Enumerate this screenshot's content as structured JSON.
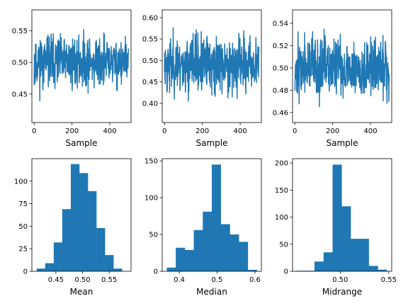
{
  "colors": {
    "series": "#1f77b4",
    "axes": "#000000",
    "background": "#ffffff"
  },
  "chart_data": [
    {
      "type": "line",
      "xlabel": "Sample",
      "ylabel": "",
      "xlim": [
        -12,
        512
      ],
      "ylim": [
        0.405,
        0.583
      ],
      "xticks": [
        0,
        200,
        400
      ],
      "xtick_labels": [
        "0",
        "200",
        "400"
      ],
      "yticks": [
        0.45,
        0.5,
        0.55
      ],
      "ytick_labels": [
        "0.45",
        "0.50",
        "0.55"
      ],
      "n_points": 500,
      "summary": {
        "min": 0.414,
        "max": 0.574,
        "center": 0.5,
        "spread": 0.028,
        "seed": 11
      }
    },
    {
      "type": "line",
      "xlabel": "Sample",
      "ylabel": "",
      "xlim": [
        -12,
        512
      ],
      "ylim": [
        0.355,
        0.618
      ],
      "xticks": [
        0,
        200,
        400
      ],
      "xtick_labels": [
        "0",
        "200",
        "400"
      ],
      "yticks": [
        0.4,
        0.45,
        0.5,
        0.55,
        0.6
      ],
      "ytick_labels": [
        "0.40",
        "0.45",
        "0.50",
        "0.55",
        "0.60"
      ],
      "n_points": 500,
      "summary": {
        "min": 0.367,
        "max": 0.605,
        "center": 0.49,
        "spread": 0.045,
        "seed": 23
      }
    },
    {
      "type": "line",
      "xlabel": "Sample",
      "ylabel": "",
      "xlim": [
        -12,
        512
      ],
      "ylim": [
        0.451,
        0.552
      ],
      "xticks": [
        0,
        200,
        400
      ],
      "xtick_labels": [
        "0",
        "200",
        "400"
      ],
      "yticks": [
        0.46,
        0.48,
        0.5,
        0.52,
        0.54
      ],
      "ytick_labels": [
        "0.46",
        "0.48",
        "0.50",
        "0.52",
        "0.54"
      ],
      "n_points": 500,
      "summary": {
        "min": 0.455,
        "max": 0.548,
        "center": 0.5,
        "spread": 0.018,
        "seed": 37
      }
    },
    {
      "type": "bar",
      "xlabel": "Mean",
      "ylabel": "",
      "xlim": [
        0.405,
        0.591
      ],
      "ylim": [
        0,
        125
      ],
      "xticks": [
        0.45,
        0.5,
        0.55
      ],
      "xtick_labels": [
        "0.45",
        "0.50",
        "0.55"
      ],
      "yticks": [
        0,
        25,
        50,
        75,
        100
      ],
      "ytick_labels": [
        "0",
        "25",
        "50",
        "75",
        "100"
      ],
      "bin_edges": [
        0.414,
        0.43,
        0.446,
        0.462,
        0.478,
        0.494,
        0.51,
        0.526,
        0.542,
        0.558,
        0.574
      ],
      "values": [
        3,
        9,
        32,
        69,
        119,
        109,
        89,
        48,
        18,
        3
      ]
    },
    {
      "type": "bar",
      "xlabel": "Median",
      "ylabel": "",
      "xlim": [
        0.355,
        0.617
      ],
      "ylim": [
        0,
        153
      ],
      "xticks": [
        0.4,
        0.5,
        0.6
      ],
      "xtick_labels": [
        "0.4",
        "0.5",
        "0.6"
      ],
      "yticks": [
        0,
        50,
        100,
        150
      ],
      "ytick_labels": [
        "0",
        "50",
        "100",
        "150"
      ],
      "bin_edges": [
        0.367,
        0.3908,
        0.4146,
        0.4384,
        0.4622,
        0.486,
        0.5098,
        0.5336,
        0.5574,
        0.5812,
        0.605
      ],
      "values": [
        5,
        32,
        29,
        56,
        81,
        145,
        64,
        50,
        40,
        2
      ]
    },
    {
      "type": "bar",
      "xlabel": "Midrange",
      "ylabel": "",
      "xlim": [
        0.451,
        0.553
      ],
      "ylim": [
        0,
        208
      ],
      "xticks": [
        0.5,
        0.55
      ],
      "xtick_labels": [
        "0.50",
        "0.55"
      ],
      "yticks": [
        0,
        50,
        100,
        150,
        200
      ],
      "ytick_labels": [
        "0",
        "50",
        "100",
        "150",
        "200"
      ],
      "bin_edges": [
        0.455,
        0.4643,
        0.4736,
        0.4829,
        0.4922,
        0.5015,
        0.5108,
        0.5201,
        0.5294,
        0.5387,
        0.548
      ],
      "values": [
        1,
        1,
        18,
        35,
        197,
        120,
        60,
        60,
        10,
        3
      ]
    }
  ]
}
